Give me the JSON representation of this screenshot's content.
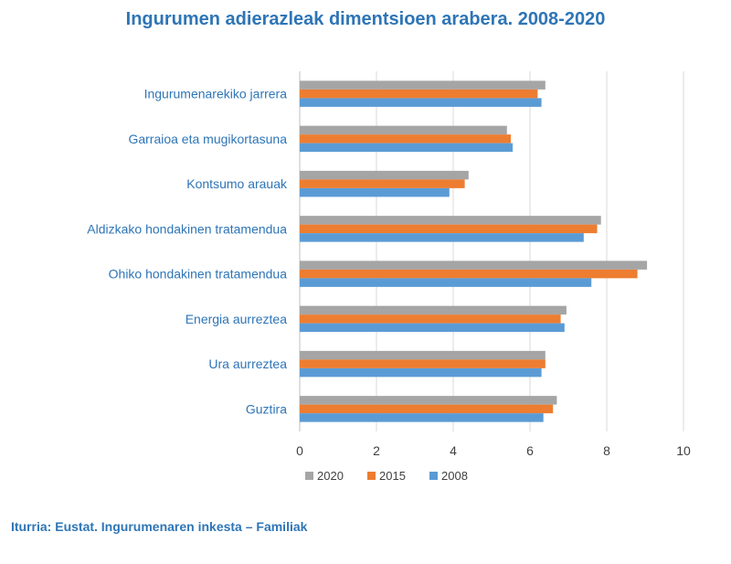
{
  "chart_data": {
    "type": "bar",
    "orientation": "horizontal",
    "title": "Ingurumen adierazleak dimentsioen arabera. 2008-2020",
    "categories": [
      "Ingurumenarekiko jarrera",
      "Garraioa eta mugikortasuna",
      "Kontsumo arauak",
      "Aldizkako hondakinen tratamendua",
      "Ohiko hondakinen tratamendua",
      "Energia aurreztea",
      "Ura aurreztea",
      "Guztira"
    ],
    "series": [
      {
        "name": "2020",
        "color": "#a5a5a5",
        "values": [
          6.4,
          5.4,
          4.4,
          7.85,
          9.05,
          6.95,
          6.4,
          6.7
        ]
      },
      {
        "name": "2015",
        "color": "#ed7d31",
        "values": [
          6.2,
          5.5,
          4.3,
          7.75,
          8.8,
          6.8,
          6.4,
          6.6
        ]
      },
      {
        "name": "2008",
        "color": "#5b9bd5",
        "values": [
          6.3,
          5.55,
          3.9,
          7.4,
          7.6,
          6.9,
          6.3,
          6.35
        ]
      }
    ],
    "xlim": [
      0,
      10
    ],
    "xticks": [
      "0",
      "2",
      "4",
      "6",
      "8",
      "10"
    ],
    "grid": true,
    "legend": "bottom",
    "legend_order": [
      "2020",
      "2015",
      "2008"
    ]
  },
  "source": "Iturria: Eustat. Ingurumenaren inkesta – Familiak"
}
